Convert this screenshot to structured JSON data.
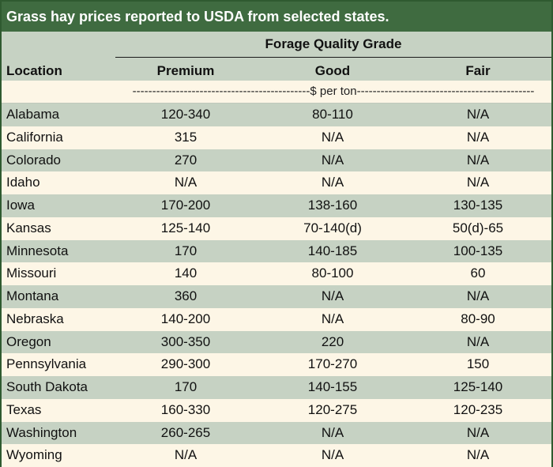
{
  "title": "Grass hay prices reported to USDA from selected states.",
  "header": {
    "group_label": "Forage Quality Grade",
    "location_label": "Location",
    "premium_label": "Premium",
    "good_label": "Good",
    "fair_label": "Fair"
  },
  "unit_label": "---------------------------------------------$ per ton---------------------------------------------",
  "rows": [
    {
      "location": "Alabama",
      "premium": "120-340",
      "good": "80-110",
      "fair": "N/A"
    },
    {
      "location": "California",
      "premium": "315",
      "good": "N/A",
      "fair": "N/A"
    },
    {
      "location": "Colorado",
      "premium": "270",
      "good": "N/A",
      "fair": "N/A"
    },
    {
      "location": "Idaho",
      "premium": "N/A",
      "good": "N/A",
      "fair": "N/A"
    },
    {
      "location": "Iowa",
      "premium": "170-200",
      "good": "138-160",
      "fair": "130-135"
    },
    {
      "location": "Kansas",
      "premium": "125-140",
      "good": "70-140(d)",
      "fair": "50(d)-65"
    },
    {
      "location": "Minnesota",
      "premium": "170",
      "good": "140-185",
      "fair": "100-135"
    },
    {
      "location": "Missouri",
      "premium": "140",
      "good": "80-100",
      "fair": "60"
    },
    {
      "location": "Montana",
      "premium": "360",
      "good": "N/A",
      "fair": "N/A"
    },
    {
      "location": "Nebraska",
      "premium": "140-200",
      "good": "N/A",
      "fair": "80-90"
    },
    {
      "location": "Oregon",
      "premium": "300-350",
      "good": "220",
      "fair": "N/A"
    },
    {
      "location": "Pennsylvania",
      "premium": "290-300",
      "good": "170-270",
      "fair": "150"
    },
    {
      "location": "South Dakota",
      "premium": "170",
      "good": "140-155",
      "fair": "125-140"
    },
    {
      "location": "Texas",
      "premium": "160-330",
      "good": "120-275",
      "fair": "120-235"
    },
    {
      "location": "Washington",
      "premium": "260-265",
      "good": "N/A",
      "fair": "N/A"
    },
    {
      "location": "Wyoming",
      "premium": "N/A",
      "good": "N/A",
      "fair": "N/A"
    }
  ]
}
